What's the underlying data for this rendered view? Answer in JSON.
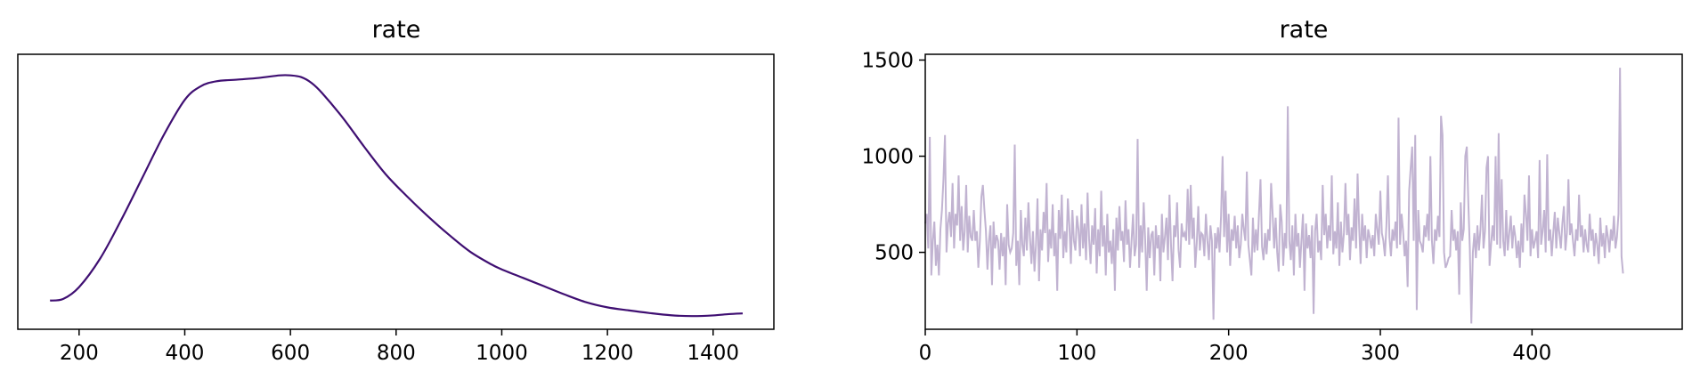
{
  "chart_data": [
    {
      "type": "line",
      "title": "rate",
      "xlabel": "",
      "ylabel": "",
      "xlim": [
        84,
        1515
      ],
      "ylim": [
        0,
        0.00163
      ],
      "x_ticks": [
        200,
        400,
        600,
        800,
        1000,
        1200,
        1400
      ],
      "y_ticks": [],
      "grid": false,
      "color": "#3f0f72",
      "series": [
        {
          "x": [
            145,
            170,
            200,
            240,
            280,
            320,
            360,
            400,
            430,
            460,
            500,
            540,
            580,
            600,
            620,
            640,
            660,
            700,
            740,
            780,
            820,
            860,
            900,
            940,
            980,
            1000,
            1040,
            1080,
            1120,
            1160,
            1200,
            1240,
            1280,
            1320,
            1360,
            1400,
            1430,
            1456
          ],
          "y": [
            0.00017,
            0.00018,
            0.00025,
            0.00042,
            0.00065,
            0.0009,
            0.00115,
            0.00136,
            0.00144,
            0.00147,
            0.00148,
            0.00149,
            0.001505,
            0.001505,
            0.001495,
            0.00146,
            0.0014,
            0.00125,
            0.00108,
            0.00092,
            0.00079,
            0.00067,
            0.00056,
            0.00046,
            0.000385,
            0.000355,
            0.000305,
            0.000255,
            0.000205,
            0.00016,
            0.00013,
            0.000112,
            9.6e-05,
            8.3e-05,
            7.8e-05,
            8.2e-05,
            9e-05,
            9.4e-05
          ]
        }
      ]
    },
    {
      "type": "line",
      "title": "rate",
      "xlabel": "",
      "ylabel": "",
      "xlim": [
        0,
        499
      ],
      "ylim": [
        100,
        1530
      ],
      "x_ticks": [
        0,
        100,
        200,
        300,
        400
      ],
      "y_ticks": [
        500,
        1000,
        1500
      ],
      "grid": false,
      "color": "#c1b3d1",
      "series": [
        {
          "x_start": 0,
          "x_step": 1,
          "values": [
            650,
            700,
            520,
            1100,
            380,
            560,
            660,
            430,
            540,
            380,
            620,
            720,
            880,
            1110,
            500,
            650,
            710,
            580,
            860,
            520,
            700,
            640,
            900,
            560,
            740,
            510,
            610,
            850,
            500,
            690,
            580,
            560,
            720,
            560,
            610,
            420,
            560,
            790,
            850,
            720,
            610,
            410,
            560,
            640,
            330,
            660,
            520,
            590,
            560,
            410,
            600,
            480,
            580,
            330,
            750,
            540,
            500,
            520,
            600,
            1060,
            430,
            560,
            330,
            720,
            540,
            480,
            680,
            510,
            760,
            580,
            440,
            610,
            400,
            540,
            780,
            350,
            620,
            510,
            710,
            600,
            860,
            450,
            620,
            520,
            750,
            480,
            600,
            300,
            720,
            570,
            800,
            470,
            610,
            500,
            780,
            640,
            440,
            720,
            560,
            510,
            690,
            620,
            480,
            750,
            520,
            650,
            460,
            810,
            570,
            440,
            640,
            540,
            730,
            390,
            620,
            480,
            820,
            530,
            640,
            380,
            700,
            500,
            560,
            440,
            620,
            300,
            680,
            510,
            740,
            560,
            610,
            450,
            770,
            540,
            620,
            420,
            560,
            700,
            480,
            540,
            1090,
            420,
            640,
            500,
            760,
            560,
            300,
            630,
            470,
            590,
            610,
            380,
            640,
            520,
            590,
            350,
            700,
            500,
            580,
            680,
            460,
            800,
            540,
            350,
            640,
            580,
            760,
            510,
            420,
            650,
            580,
            600,
            560,
            830,
            540,
            850,
            570,
            680,
            420,
            550,
            740,
            510,
            600,
            590,
            480,
            700,
            560,
            460,
            640,
            560,
            150,
            600,
            520,
            630,
            500,
            690,
            1000,
            580,
            820,
            500,
            700,
            430,
            620,
            560,
            690,
            520,
            640,
            470,
            540,
            700,
            620,
            560,
            920,
            540,
            460,
            380,
            680,
            500,
            620,
            510,
            700,
            880,
            530,
            460,
            600,
            490,
            620,
            560,
            860,
            700,
            520,
            680,
            500,
            400,
            750,
            660,
            430,
            600,
            520,
            1260,
            560,
            460,
            640,
            380,
            700,
            530,
            600,
            420,
            560,
            700,
            300,
            650,
            520,
            590,
            470,
            640,
            180,
            610,
            700,
            500,
            560,
            460,
            850,
            590,
            700,
            520,
            640,
            560,
            900,
            490,
            610,
            520,
            760,
            430,
            660,
            500,
            600,
            860,
            590,
            700,
            460,
            630,
            560,
            780,
            520,
            910,
            640,
            440,
            700,
            560,
            640,
            470,
            620,
            580,
            520,
            590,
            480,
            700,
            620,
            540,
            820,
            600,
            560,
            480,
            640,
            900,
            580,
            480,
            620,
            560,
            660,
            520,
            1200,
            540,
            700,
            610,
            480,
            560,
            320,
            820,
            940,
            1050,
            560,
            1110,
            200,
            720,
            560,
            540,
            500,
            640,
            580,
            700,
            560,
            1000,
            560,
            440,
            620,
            560,
            690,
            580,
            1210,
            1110,
            500,
            420,
            440,
            470,
            480,
            720,
            560,
            620,
            510,
            610,
            280,
            760,
            560,
            620,
            1000,
            1050,
            760,
            520,
            130,
            500,
            600,
            470,
            640,
            510,
            620,
            800,
            520,
            610,
            940,
            1000,
            430,
            540,
            640,
            560,
            1000,
            540,
            1120,
            520,
            880,
            560,
            480,
            720,
            510,
            600,
            690,
            520,
            640,
            580,
            470,
            560,
            420,
            650,
            500,
            800,
            700,
            560,
            900,
            480,
            620,
            520,
            560,
            610,
            470,
            980,
            540,
            610,
            720,
            500,
            1010,
            560,
            620,
            480,
            600,
            710,
            520,
            680,
            600,
            520,
            650,
            740,
            510,
            600,
            880,
            590,
            650,
            560,
            480,
            620,
            560,
            800,
            580,
            640,
            500,
            620,
            540,
            500,
            700,
            560,
            620,
            480,
            600,
            540,
            440,
            680,
            530,
            600,
            470,
            640,
            580,
            500,
            620,
            560,
            690,
            520,
            580,
            700,
            1460,
            480,
            390
          ]
        }
      ]
    }
  ]
}
